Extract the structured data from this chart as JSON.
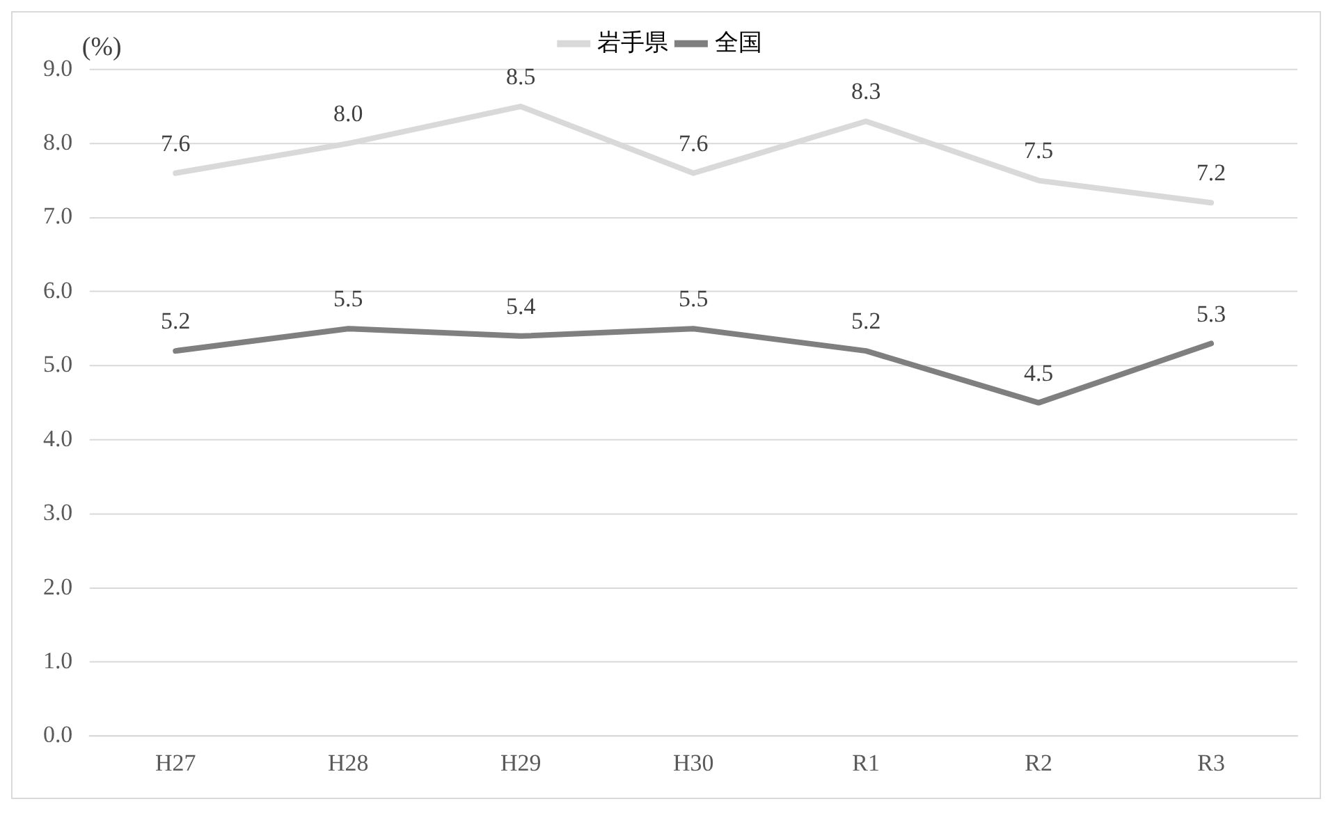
{
  "chart_data": {
    "type": "line",
    "ylabel": "(%)",
    "categories": [
      "H27",
      "H28",
      "H29",
      "H30",
      "R1",
      "R2",
      "R3"
    ],
    "series": [
      {
        "name": "岩手県",
        "color": "#d9d9d9",
        "values": [
          7.6,
          8.0,
          8.5,
          7.6,
          8.3,
          7.5,
          7.2
        ],
        "value_labels": [
          "7.6",
          "8.0",
          "8.5",
          "7.6",
          "8.3",
          "7.5",
          "7.2"
        ]
      },
      {
        "name": "全国",
        "color": "#7f7f7f",
        "values": [
          5.2,
          5.5,
          5.4,
          5.5,
          5.2,
          4.5,
          5.3
        ],
        "value_labels": [
          "5.2",
          "5.5",
          "5.4",
          "5.5",
          "5.2",
          "4.5",
          "5.3"
        ]
      }
    ],
    "ylim": [
      0,
      9
    ],
    "yticks": [
      {
        "value": 0,
        "label": "0.0"
      },
      {
        "value": 1,
        "label": "1.0"
      },
      {
        "value": 2,
        "label": "2.0"
      },
      {
        "value": 3,
        "label": "3.0"
      },
      {
        "value": 4,
        "label": "4.0"
      },
      {
        "value": 5,
        "label": "5.0"
      },
      {
        "value": 6,
        "label": "6.0"
      },
      {
        "value": 7,
        "label": "7.0"
      },
      {
        "value": 8,
        "label": "8.0"
      },
      {
        "value": 9,
        "label": "9.0"
      }
    ],
    "grid": "y",
    "legend": "top",
    "marker": "none",
    "line_style": "solid"
  }
}
